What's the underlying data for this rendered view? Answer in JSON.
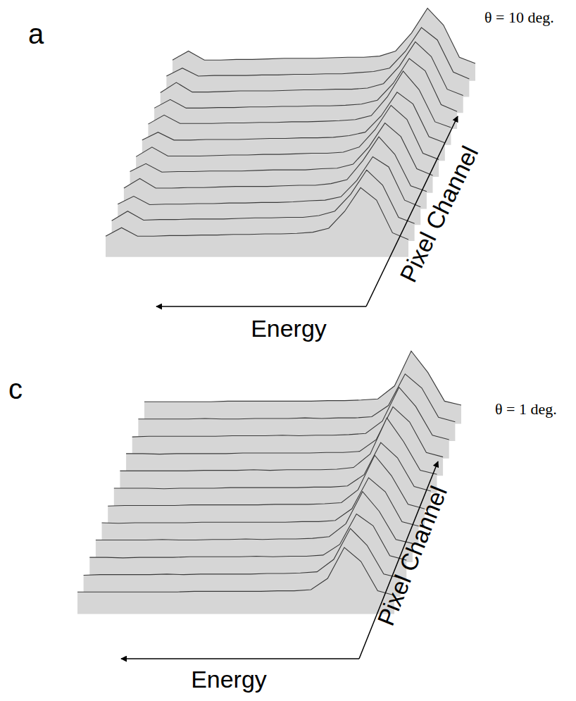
{
  "chart_data": [
    {
      "type": "waterfall",
      "panel": "a",
      "title": "θ = 10 deg.",
      "x_label": "Energy",
      "depth_label": "Pixel Channel",
      "tick_labels": false,
      "ylim": [
        0,
        1
      ],
      "color": "#3a3a3a",
      "series": [
        {
          "values": [
            0.06,
            0.21,
            0.06,
            0.06,
            0.07,
            0.07,
            0.08,
            0.08,
            0.09,
            0.09,
            0.1,
            0.1,
            0.11,
            0.13,
            0.2,
            0.5,
            0.92,
            0.7,
            0.12,
            0.0
          ]
        },
        {
          "values": [
            0.05,
            0.22,
            0.06,
            0.07,
            0.07,
            0.08,
            0.08,
            0.08,
            0.09,
            0.1,
            0.1,
            0.11,
            0.11,
            0.14,
            0.22,
            0.52,
            0.95,
            0.68,
            0.11,
            0.0
          ]
        },
        {
          "values": [
            0.06,
            0.2,
            0.05,
            0.06,
            0.06,
            0.07,
            0.07,
            0.08,
            0.08,
            0.09,
            0.09,
            0.1,
            0.12,
            0.13,
            0.19,
            0.48,
            0.9,
            0.72,
            0.13,
            0.01
          ]
        },
        {
          "values": [
            0.06,
            0.23,
            0.06,
            0.06,
            0.07,
            0.07,
            0.08,
            0.09,
            0.09,
            0.09,
            0.1,
            0.11,
            0.11,
            0.14,
            0.21,
            0.55,
            0.97,
            0.66,
            0.1,
            0.0
          ]
        },
        {
          "values": [
            0.07,
            0.21,
            0.06,
            0.07,
            0.07,
            0.08,
            0.08,
            0.08,
            0.09,
            0.1,
            0.1,
            0.1,
            0.12,
            0.13,
            0.2,
            0.51,
            0.93,
            0.69,
            0.12,
            0.0
          ]
        },
        {
          "values": [
            0.05,
            0.22,
            0.06,
            0.06,
            0.06,
            0.07,
            0.08,
            0.08,
            0.09,
            0.09,
            0.1,
            0.11,
            0.11,
            0.13,
            0.22,
            0.53,
            0.96,
            0.71,
            0.11,
            0.0
          ]
        },
        {
          "values": [
            0.06,
            0.2,
            0.06,
            0.06,
            0.07,
            0.07,
            0.07,
            0.08,
            0.09,
            0.09,
            0.1,
            0.1,
            0.11,
            0.14,
            0.2,
            0.49,
            0.91,
            0.7,
            0.12,
            0.01
          ]
        },
        {
          "values": [
            0.06,
            0.22,
            0.07,
            0.07,
            0.07,
            0.08,
            0.08,
            0.09,
            0.09,
            0.1,
            0.1,
            0.11,
            0.12,
            0.14,
            0.21,
            0.54,
            1.0,
            0.67,
            0.1,
            0.0
          ]
        },
        {
          "values": [
            0.06,
            0.21,
            0.06,
            0.06,
            0.07,
            0.07,
            0.08,
            0.08,
            0.09,
            0.09,
            0.1,
            0.1,
            0.11,
            0.13,
            0.2,
            0.5,
            0.94,
            0.72,
            0.12,
            0.0
          ]
        },
        {
          "values": [
            0.05,
            0.23,
            0.06,
            0.06,
            0.07,
            0.08,
            0.08,
            0.08,
            0.09,
            0.1,
            0.1,
            0.11,
            0.11,
            0.13,
            0.21,
            0.52,
            0.95,
            0.69,
            0.11,
            0.0
          ]
        },
        {
          "values": [
            0.06,
            0.2,
            0.06,
            0.07,
            0.07,
            0.07,
            0.08,
            0.08,
            0.09,
            0.09,
            0.1,
            0.1,
            0.12,
            0.14,
            0.2,
            0.5,
            0.92,
            0.7,
            0.13,
            0.01
          ]
        },
        {
          "values": [
            0.06,
            0.22,
            0.06,
            0.06,
            0.07,
            0.07,
            0.08,
            0.09,
            0.09,
            0.09,
            0.1,
            0.11,
            0.11,
            0.13,
            0.22,
            0.54,
            0.98,
            0.68,
            0.11,
            0.0
          ]
        }
      ]
    },
    {
      "type": "waterfall",
      "panel": "c",
      "title": "θ = 1 deg.",
      "x_label": "Energy",
      "depth_label": "Pixel Channel",
      "tick_labels": false,
      "ylim": [
        0,
        1
      ],
      "color": "#3a3a3a",
      "series": [
        {
          "values": [
            0.06,
            0.06,
            0.06,
            0.06,
            0.06,
            0.06,
            0.06,
            0.07,
            0.07,
            0.07,
            0.07,
            0.07,
            0.08,
            0.08,
            0.1,
            0.3,
            0.85,
            0.6,
            0.08,
            0.0
          ]
        },
        {
          "values": [
            0.05,
            0.06,
            0.06,
            0.06,
            0.06,
            0.07,
            0.06,
            0.07,
            0.07,
            0.07,
            0.07,
            0.08,
            0.08,
            0.09,
            0.11,
            0.33,
            0.88,
            0.58,
            0.07,
            0.0
          ]
        },
        {
          "values": [
            0.06,
            0.06,
            0.05,
            0.06,
            0.06,
            0.06,
            0.07,
            0.07,
            0.07,
            0.07,
            0.08,
            0.07,
            0.08,
            0.08,
            0.1,
            0.29,
            0.83,
            0.62,
            0.09,
            0.01
          ]
        },
        {
          "values": [
            0.06,
            0.06,
            0.06,
            0.06,
            0.07,
            0.06,
            0.06,
            0.07,
            0.07,
            0.08,
            0.07,
            0.08,
            0.08,
            0.09,
            0.12,
            0.35,
            0.92,
            0.57,
            0.07,
            0.0
          ]
        },
        {
          "values": [
            0.06,
            0.05,
            0.06,
            0.06,
            0.06,
            0.06,
            0.07,
            0.07,
            0.07,
            0.07,
            0.07,
            0.07,
            0.08,
            0.08,
            0.1,
            0.31,
            0.86,
            0.61,
            0.08,
            0.0
          ]
        },
        {
          "values": [
            0.05,
            0.06,
            0.06,
            0.06,
            0.06,
            0.07,
            0.07,
            0.07,
            0.07,
            0.07,
            0.08,
            0.08,
            0.08,
            0.09,
            0.11,
            0.34,
            0.95,
            0.59,
            0.08,
            0.0
          ]
        },
        {
          "values": [
            0.06,
            0.06,
            0.06,
            0.05,
            0.06,
            0.06,
            0.06,
            0.07,
            0.07,
            0.07,
            0.07,
            0.07,
            0.08,
            0.08,
            0.1,
            0.3,
            0.87,
            0.6,
            0.09,
            0.01
          ]
        },
        {
          "values": [
            0.06,
            0.06,
            0.06,
            0.06,
            0.06,
            0.07,
            0.07,
            0.07,
            0.08,
            0.07,
            0.08,
            0.08,
            0.08,
            0.09,
            0.12,
            0.36,
            1.0,
            0.58,
            0.07,
            0.0
          ]
        },
        {
          "values": [
            0.06,
            0.06,
            0.05,
            0.06,
            0.06,
            0.06,
            0.06,
            0.07,
            0.07,
            0.07,
            0.07,
            0.07,
            0.08,
            0.08,
            0.1,
            0.31,
            0.89,
            0.62,
            0.08,
            0.0
          ]
        },
        {
          "values": [
            0.05,
            0.06,
            0.06,
            0.06,
            0.06,
            0.06,
            0.07,
            0.07,
            0.07,
            0.08,
            0.07,
            0.08,
            0.08,
            0.09,
            0.11,
            0.33,
            0.93,
            0.59,
            0.08,
            0.0
          ]
        },
        {
          "values": [
            0.06,
            0.06,
            0.06,
            0.06,
            0.07,
            0.06,
            0.06,
            0.07,
            0.07,
            0.07,
            0.08,
            0.07,
            0.08,
            0.08,
            0.1,
            0.3,
            0.86,
            0.61,
            0.09,
            0.01
          ]
        },
        {
          "values": [
            0.06,
            0.06,
            0.06,
            0.06,
            0.06,
            0.07,
            0.07,
            0.07,
            0.07,
            0.07,
            0.07,
            0.08,
            0.08,
            0.09,
            0.11,
            0.34,
            0.96,
            0.58,
            0.07,
            0.0
          ]
        }
      ]
    }
  ]
}
